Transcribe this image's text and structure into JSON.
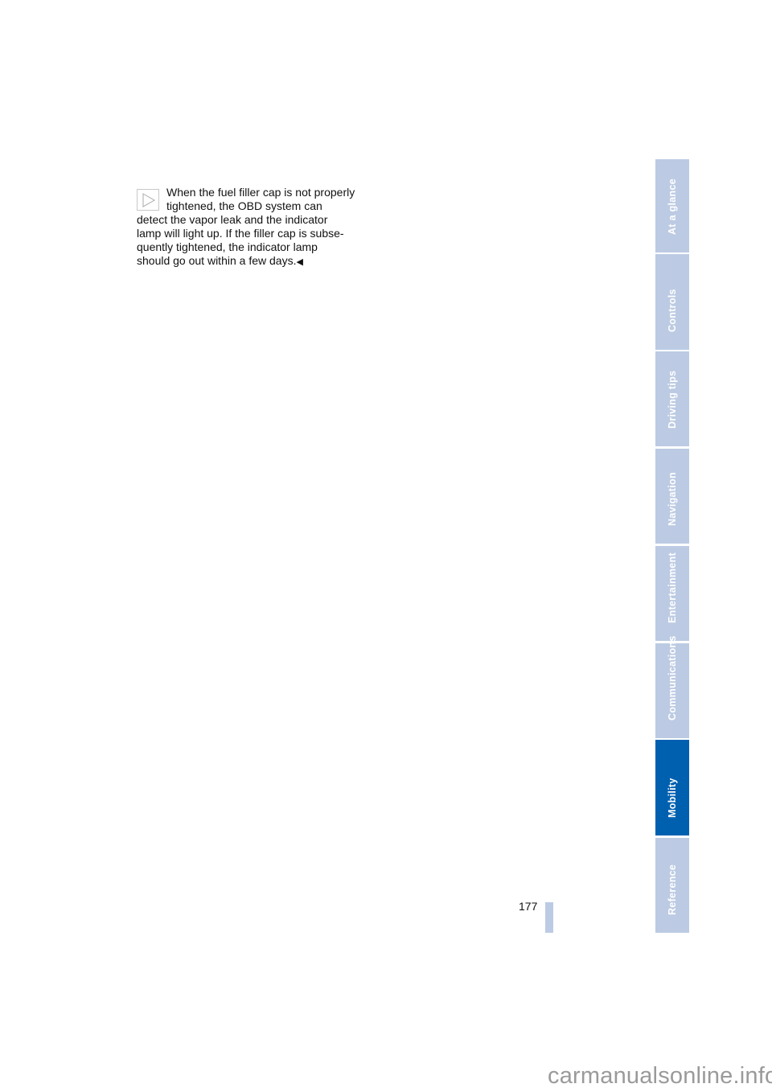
{
  "note": {
    "icon": "note-triangle-icon",
    "lines": [
      "When the fuel filler cap is not properly",
      "tightened, the OBD system can",
      "detect the vapor leak and the indicator",
      "lamp will light up. If the filler cap is subse-",
      "quently tightened, the indicator lamp",
      "should go out within a few days."
    ],
    "end_mark": "◀"
  },
  "page_number": "177",
  "sidebar": {
    "active": "Mobility",
    "colors": {
      "inactive": "#bccbe3",
      "active": "#0060b0"
    },
    "items": [
      {
        "label": "At a glance"
      },
      {
        "label": "Controls"
      },
      {
        "label": "Driving tips"
      },
      {
        "label": "Navigation"
      },
      {
        "label": "Entertainment"
      },
      {
        "label": "Communications"
      },
      {
        "label": "Mobility"
      },
      {
        "label": "Reference"
      }
    ]
  },
  "watermark": "carmanualsonline.info"
}
